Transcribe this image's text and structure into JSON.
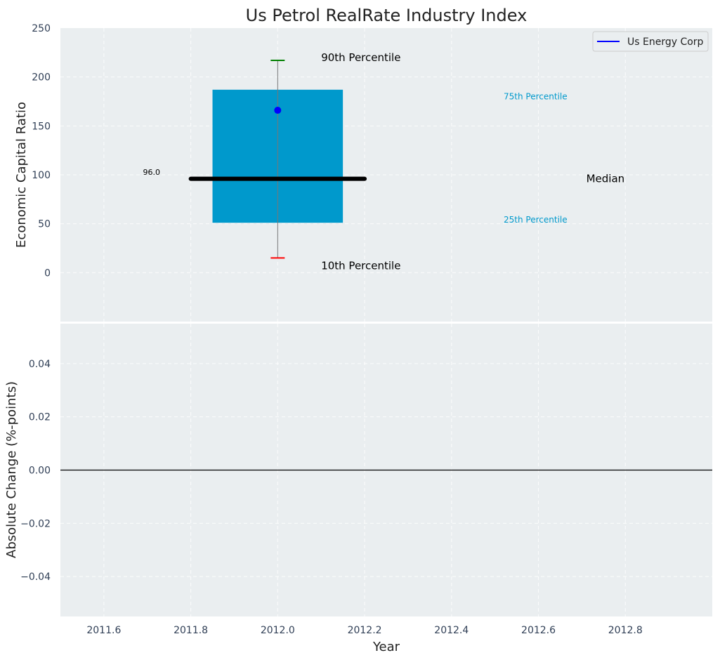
{
  "chart_data": [
    {
      "type": "bar",
      "panel": "top",
      "title": "Us Petrol RealRate Industry Index",
      "xlabel": "",
      "ylabel": "Economic Capital Ratio",
      "ylim": [
        -50,
        250
      ],
      "yticks": [
        0,
        50,
        100,
        150,
        200,
        250
      ],
      "xlim": [
        2011.5,
        2013.0
      ],
      "grid": true,
      "legend": {
        "placement": "top-right",
        "entries": [
          {
            "label": "Us Energy Corp",
            "color": "#0000ff"
          }
        ]
      },
      "percentile_box": {
        "x": 2012.0,
        "box_width": 0.3,
        "p25": 51,
        "p75": 187,
        "median": 96.0,
        "median_label": "96.0",
        "median_x_range": [
          2011.8,
          2012.2
        ],
        "p10": 15,
        "p90": 217,
        "company_value": 166,
        "box_color": "#0099cc",
        "p90_color": "#008000",
        "p10_color": "#ff0000",
        "company_color": "#0000ff"
      },
      "annotations": [
        {
          "key": "p90",
          "text": "90th Percentile",
          "x": 2012.1,
          "y": 220,
          "style": "big"
        },
        {
          "key": "p75",
          "text": "75th Percentile",
          "x": 2012.52,
          "y": 180,
          "style": "small"
        },
        {
          "key": "median",
          "text": "Median",
          "x": 2012.71,
          "y": 96,
          "style": "big"
        },
        {
          "key": "p25",
          "text": "25th Percentile",
          "x": 2012.52,
          "y": 54,
          "style": "small"
        },
        {
          "key": "p10",
          "text": "10th Percentile",
          "x": 2012.1,
          "y": 7,
          "style": "big"
        },
        {
          "key": "medval",
          "text": "96.0",
          "x": 2011.69,
          "y": 103,
          "style": "val"
        }
      ]
    },
    {
      "type": "line",
      "panel": "bottom",
      "xlabel": "Year",
      "ylabel": "Absolute Change (%-points)",
      "ylim": [
        -0.055,
        0.055
      ],
      "yticks": [
        -0.04,
        -0.02,
        0.0,
        0.02,
        0.04
      ],
      "ytick_labels": [
        "−0.04",
        "−0.02",
        "0.00",
        "0.02",
        "0.04"
      ],
      "xlim": [
        2011.5,
        2013.0
      ],
      "xticks": [
        2011.6,
        2011.8,
        2012.0,
        2012.2,
        2012.4,
        2012.6,
        2012.8
      ],
      "xtick_labels": [
        "2011.6",
        "2011.8",
        "2012.0",
        "2012.2",
        "2012.4",
        "2012.6",
        "2012.8"
      ],
      "grid": true,
      "reference_line": 0.0
    }
  ],
  "colors": {
    "panel_bg": "#eaeef0",
    "grid": "#ffffff",
    "tick_text": "#2f3e55"
  }
}
